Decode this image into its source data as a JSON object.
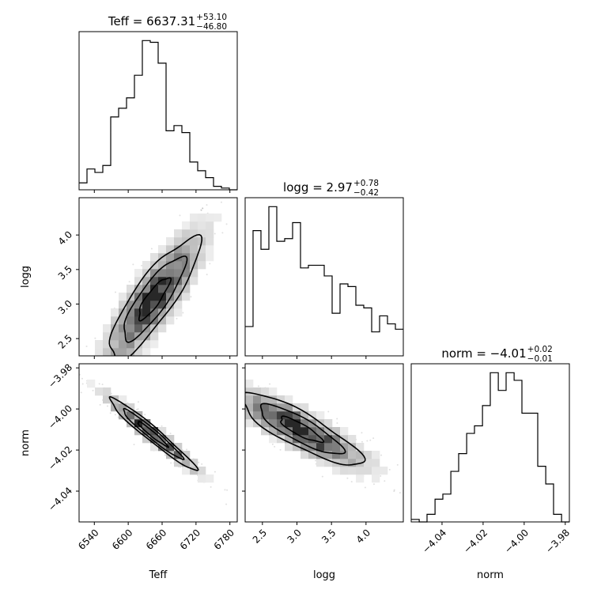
{
  "chart_data": {
    "type": "corner",
    "parameters": [
      "Teff",
      "logg",
      "norm"
    ],
    "titles": [
      {
        "param": "Teff",
        "prefix": "Teff = ",
        "median": "6637.31",
        "plus": "+53.10",
        "minus": "−46.80"
      },
      {
        "param": "logg",
        "prefix": "logg = ",
        "median": "2.97",
        "plus": "+0.78",
        "minus": "−0.42"
      },
      {
        "param": "norm",
        "prefix": "norm = ",
        "median": "−4.01",
        "plus": "+0.02",
        "minus": "−0.01"
      }
    ],
    "xlabels": [
      "Teff",
      "logg",
      "norm"
    ],
    "ylabels": [
      "",
      "logg",
      "norm"
    ],
    "ranges": {
      "Teff": [
        6513,
        6793
      ],
      "logg": [
        2.25,
        4.54
      ],
      "norm": [
        -4.055,
        -3.978
      ]
    },
    "ticks": {
      "Teff": {
        "values": [
          6540,
          6600,
          6660,
          6720,
          6780
        ],
        "labels": [
          "6540",
          "6600",
          "6660",
          "6720",
          "6780"
        ]
      },
      "logg": {
        "values": [
          2.5,
          3.0,
          3.5,
          4.0
        ],
        "labels": [
          "2.5",
          "3.0",
          "3.5",
          "4.0"
        ]
      },
      "norm": {
        "values": [
          -4.04,
          -4.02,
          -4.0,
          -3.98
        ],
        "labels": [
          "−4.04",
          "−4.02",
          "−4.00",
          "−3.98"
        ]
      }
    },
    "histograms": {
      "Teff": {
        "edges": [
          6513,
          6527,
          6541,
          6555,
          6569,
          6583,
          6597,
          6611,
          6625,
          6639,
          6653,
          6667,
          6681,
          6695,
          6709,
          6723,
          6737,
          6751,
          6765,
          6779,
          6793
        ],
        "counts": [
          4,
          12,
          10,
          14,
          42,
          47,
          53,
          66,
          86,
          85,
          73,
          34,
          37,
          33,
          16,
          11,
          7,
          2,
          1,
          0
        ]
      },
      "logg": {
        "edges": [
          2.25,
          2.3645,
          2.479,
          2.5935,
          2.708,
          2.8225,
          2.937,
          3.0515,
          3.166,
          3.2805,
          3.395,
          3.5095,
          3.624,
          3.7385,
          3.853,
          3.9675,
          4.082,
          4.1965,
          4.311,
          4.4255,
          4.54
        ],
        "counts": [
          11,
          47,
          40,
          56,
          43,
          44,
          50,
          33,
          34,
          34,
          30,
          16,
          27,
          26,
          19,
          18,
          9,
          15,
          12,
          10
        ]
      },
      "norm": {
        "edges": [
          -4.055,
          -4.0511,
          -4.0473,
          -4.0434,
          -4.0396,
          -4.0357,
          -4.0319,
          -4.028,
          -4.0242,
          -4.0203,
          -4.0165,
          -4.0126,
          -4.0088,
          -4.0049,
          -4.0011,
          -3.9972,
          -3.9934,
          -3.9895,
          -3.9857,
          -3.9818,
          -3.978
        ],
        "counts": [
          1,
          0,
          3,
          9,
          11,
          20,
          27,
          35,
          38,
          46,
          59,
          52,
          59,
          56,
          43,
          43,
          22,
          15,
          3,
          0
        ]
      }
    },
    "pairs": [
      {
        "x": "Teff",
        "y": "logg",
        "center": [
          6645,
          3.08
        ],
        "sd": [
          50,
          0.55
        ],
        "rho": 0.85
      },
      {
        "x": "Teff",
        "y": "norm",
        "center": [
          6642,
          -4.012
        ],
        "sd": [
          48,
          0.011
        ],
        "rho": -0.97
      },
      {
        "x": "logg",
        "y": "norm",
        "center": [
          3.05,
          -4.01
        ],
        "sd": [
          0.55,
          0.011
        ],
        "rho": -0.85
      }
    ]
  }
}
